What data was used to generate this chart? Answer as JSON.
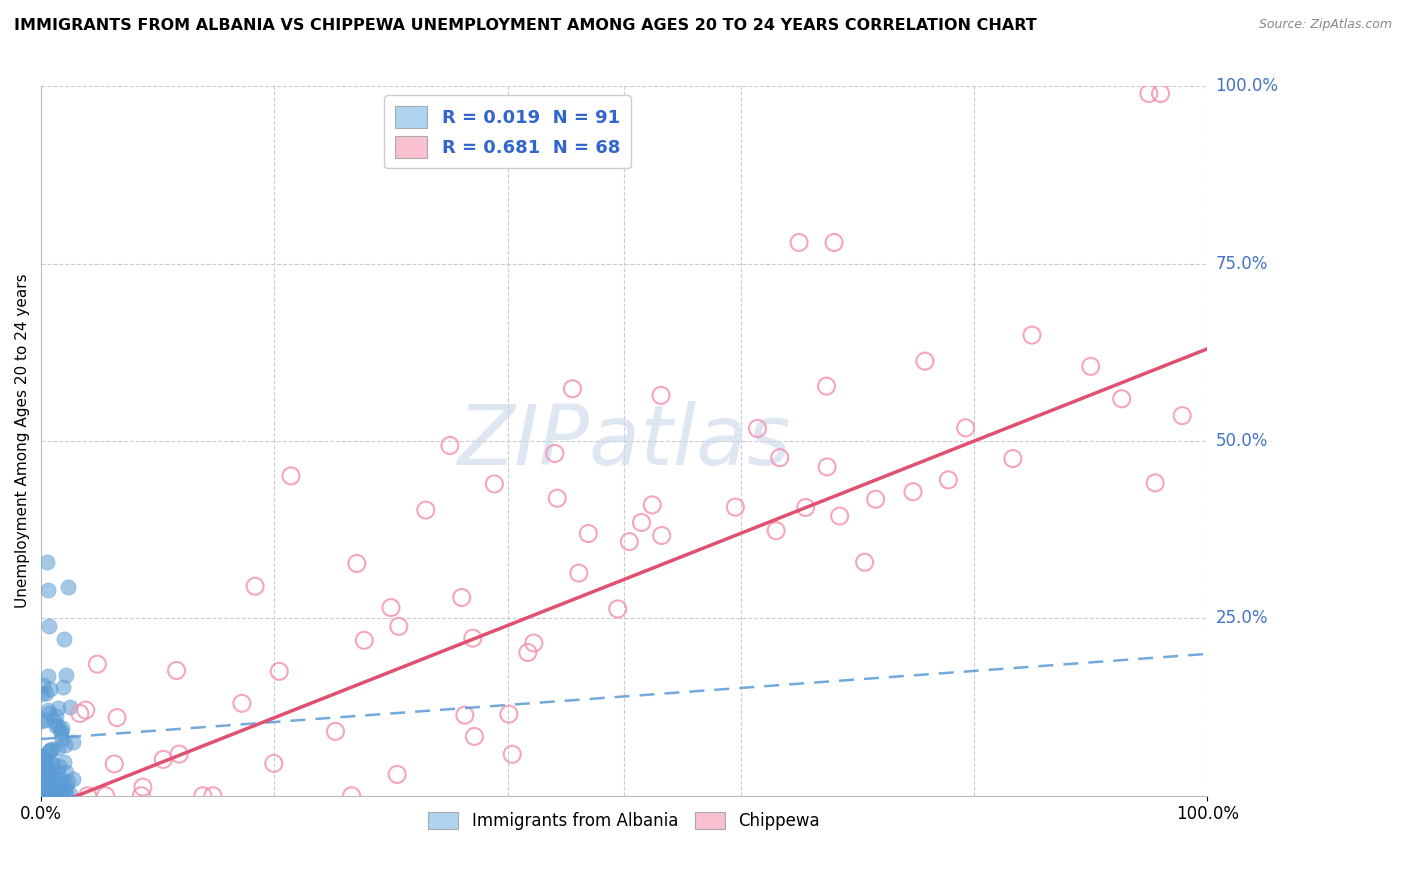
{
  "title": "IMMIGRANTS FROM ALBANIA VS CHIPPEWA UNEMPLOYMENT AMONG AGES 20 TO 24 YEARS CORRELATION CHART",
  "source": "Source: ZipAtlas.com",
  "ylabel": "Unemployment Among Ages 20 to 24 years",
  "legend1_label": "R = 0.019  N = 91",
  "legend2_label": "R = 0.681  N = 68",
  "legend1_color": "#aed4f0",
  "legend2_color": "#f9c0d0",
  "scatter1_color": "#5b9bd5",
  "scatter2_color": "#f48fb1",
  "trendline1_color": "#5b9bd5",
  "trendline2_color": "#e05070",
  "watermark_color": "#c8d8e8",
  "background_color": "#ffffff",
  "grid_color": "#cccccc",
  "right_label_color": "#4472c4",
  "xlim": [
    0.0,
    1.0
  ],
  "ylim": [
    0.0,
    1.0
  ],
  "right_labels": [
    [
      1.0,
      "100.0%"
    ],
    [
      0.75,
      "75.0%"
    ],
    [
      0.5,
      "50.0%"
    ],
    [
      0.25,
      "25.0%"
    ]
  ]
}
